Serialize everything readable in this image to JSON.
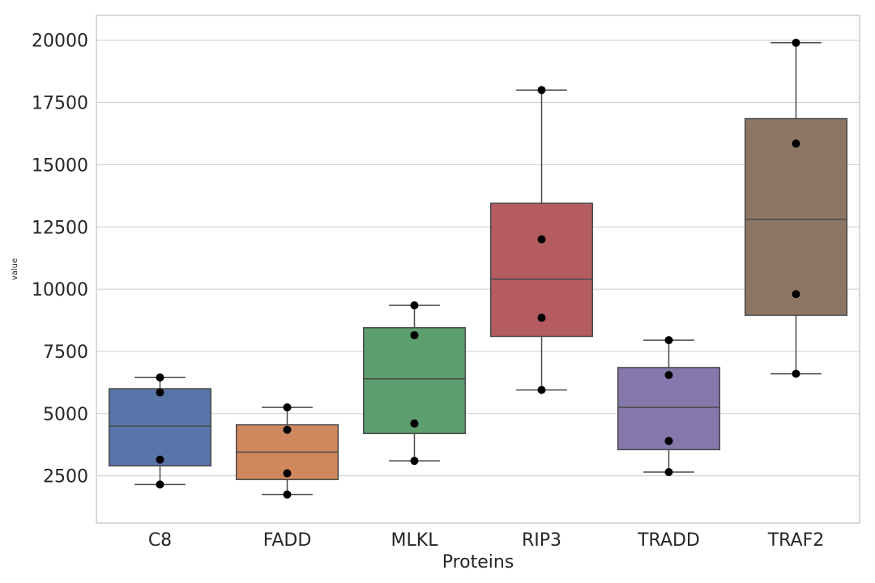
{
  "chart_data": {
    "type": "box",
    "title": "",
    "xlabel": "Proteins",
    "ylabel": "value",
    "ylim": [
      600,
      21000
    ],
    "yticks": [
      2500,
      5000,
      7500,
      10000,
      12500,
      15000,
      17500,
      20000
    ],
    "grid": "horizontal",
    "categories": [
      "C8",
      "FADD",
      "MLKL",
      "RIP3",
      "TRADD",
      "TRAF2"
    ],
    "colors": [
      "#5875a9",
      "#cf875e",
      "#5c9e6d",
      "#b45c60",
      "#8578ab",
      "#8c7764"
    ],
    "boxes": [
      {
        "category": "C8",
        "whisker_low": 2150,
        "q1": 2900,
        "median": 4500,
        "q3": 6000,
        "whisker_high": 6450,
        "points": [
          2150,
          3150,
          5850,
          6450
        ]
      },
      {
        "category": "FADD",
        "whisker_low": 1750,
        "q1": 2350,
        "median": 3450,
        "q3": 4550,
        "whisker_high": 5250,
        "points": [
          1750,
          2600,
          4350,
          5250
        ]
      },
      {
        "category": "MLKL",
        "whisker_low": 3100,
        "q1": 4200,
        "median": 6400,
        "q3": 8450,
        "whisker_high": 9350,
        "points": [
          3100,
          4600,
          8150,
          9350
        ]
      },
      {
        "category": "RIP3",
        "whisker_low": 5950,
        "q1": 8100,
        "median": 10400,
        "q3": 13450,
        "whisker_high": 18000,
        "points": [
          5950,
          8850,
          12000,
          18000
        ]
      },
      {
        "category": "TRADD",
        "whisker_low": 2650,
        "q1": 3550,
        "median": 5250,
        "q3": 6850,
        "whisker_high": 7950,
        "points": [
          2650,
          3900,
          6550,
          7950
        ]
      },
      {
        "category": "TRAF2",
        "whisker_low": 6600,
        "q1": 8950,
        "median": 12800,
        "q3": 16850,
        "whisker_high": 19900,
        "points": [
          6600,
          9800,
          15850,
          19900
        ]
      }
    ]
  }
}
